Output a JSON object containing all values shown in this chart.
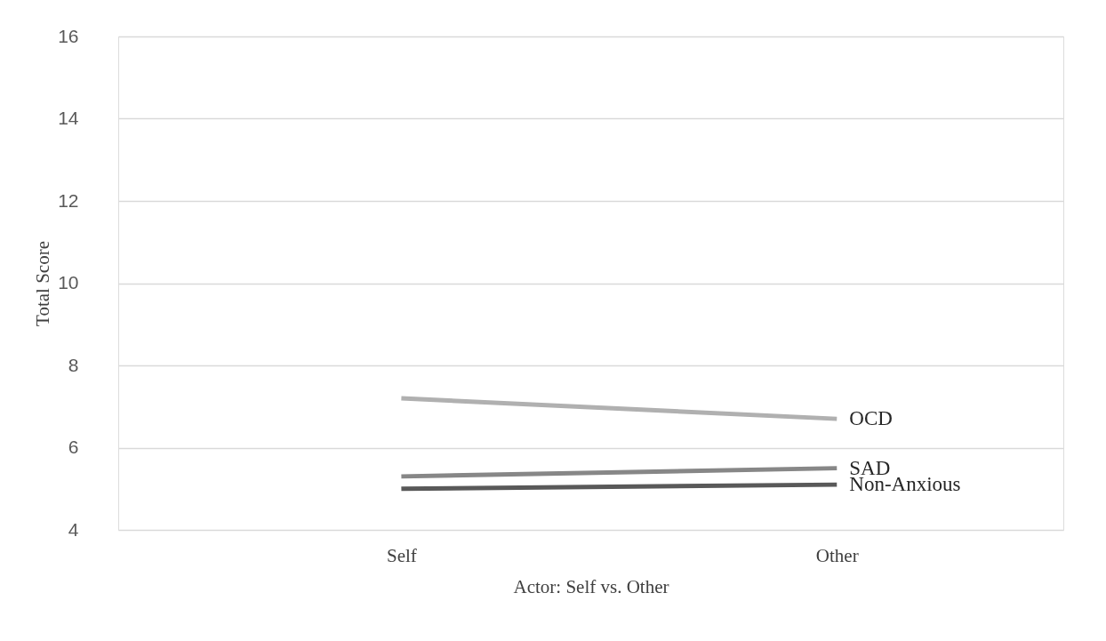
{
  "chart_data": {
    "type": "line",
    "xlabel": "Actor: Self vs. Other",
    "ylabel": "Total Score",
    "categories": [
      "Self",
      "Other"
    ],
    "series": [
      {
        "name": "OCD",
        "color": "#b0b0b0",
        "values": [
          7.2,
          6.7
        ]
      },
      {
        "name": "SAD",
        "color": "#878787",
        "values": [
          5.3,
          5.5
        ]
      },
      {
        "name": "Non-Anxious",
        "color": "#595959",
        "values": [
          5.0,
          5.1
        ]
      }
    ],
    "ylim": [
      4,
      16
    ],
    "yticks": [
      4,
      6,
      8,
      10,
      12,
      14,
      16
    ],
    "grid": "y",
    "legend": false,
    "marker": "none",
    "line_style": "solid"
  }
}
